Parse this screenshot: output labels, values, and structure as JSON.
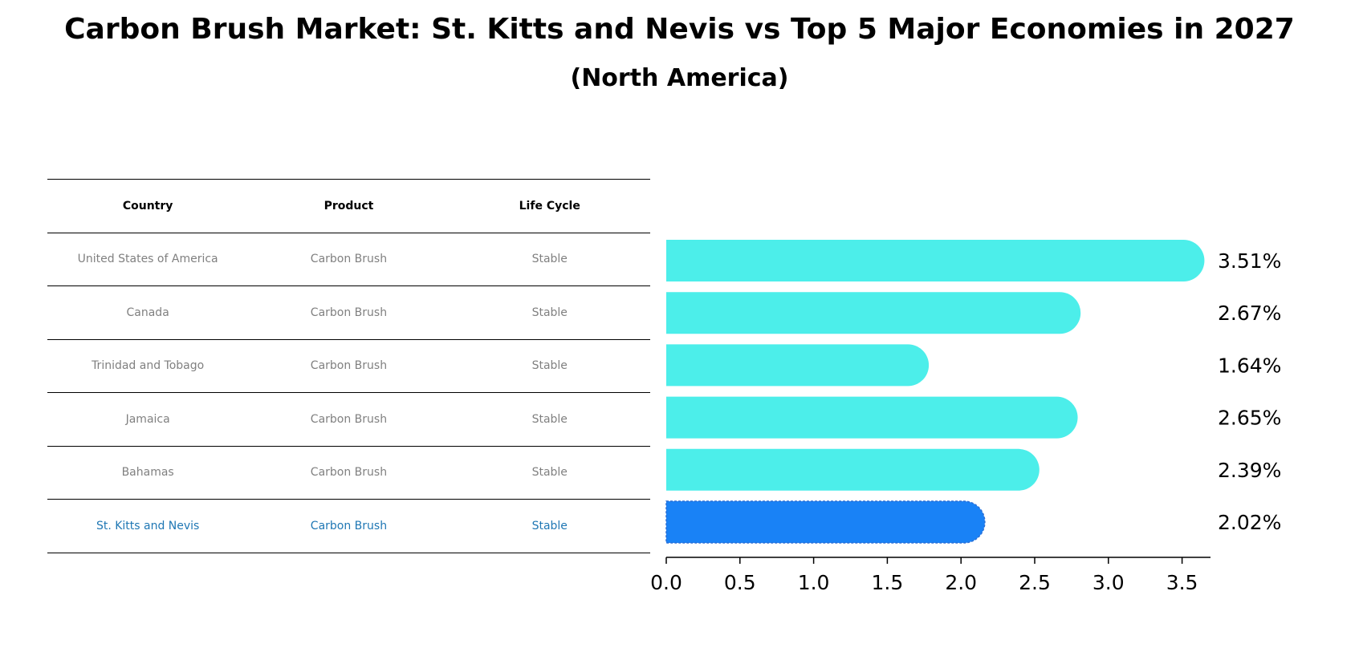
{
  "chart_data": {
    "type": "bar",
    "orientation": "horizontal",
    "title": "Carbon Brush Market: St. Kitts and Nevis vs Top 5 Major Economies in 2027",
    "subtitle": "(North America)",
    "table": {
      "headers": [
        "Country",
        "Product",
        "Life Cycle"
      ],
      "rows": [
        {
          "country": "United States of America",
          "product": "Carbon Brush",
          "life_cycle": "Stable"
        },
        {
          "country": "Canada",
          "product": "Carbon Brush",
          "life_cycle": "Stable"
        },
        {
          "country": "Trinidad and Tobago",
          "product": "Carbon Brush",
          "life_cycle": "Stable"
        },
        {
          "country": "Jamaica",
          "product": "Carbon Brush",
          "life_cycle": "Stable"
        },
        {
          "country": "Bahamas",
          "product": "Carbon Brush",
          "life_cycle": "Stable"
        },
        {
          "country": "St. Kitts and Nevis",
          "product": "Carbon Brush",
          "life_cycle": "Stable"
        }
      ]
    },
    "categories": [
      "United States of America",
      "Canada",
      "Trinidad and Tobago",
      "Jamaica",
      "Bahamas",
      "St. Kitts and Nevis"
    ],
    "values": [
      3.51,
      2.67,
      1.64,
      2.65,
      2.39,
      2.02
    ],
    "value_labels": [
      "3.51%",
      "2.67%",
      "1.64%",
      "2.65%",
      "2.39%",
      "2.02%"
    ],
    "highlight_index": 5,
    "xlim": [
      0,
      3.7
    ],
    "xticks": [
      "0.0",
      "0.5",
      "1.0",
      "1.5",
      "2.0",
      "2.5",
      "3.0",
      "3.5"
    ],
    "xlabel": "",
    "ylabel": "",
    "colors": {
      "bar": "#4ceeea",
      "highlight": "#1982f6",
      "highlight_text": "#1f77b4",
      "muted_text": "#808080"
    }
  }
}
